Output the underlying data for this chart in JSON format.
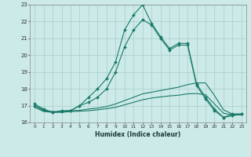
{
  "title": "",
  "xlabel": "Humidex (Indice chaleur)",
  "background_color": "#cceae7",
  "grid_color": "#aacccc",
  "line_color": "#1a7a6a",
  "xmin": -0.5,
  "xmax": 23.5,
  "ymin": 16,
  "ymax": 23,
  "yticks": [
    16,
    17,
    18,
    19,
    20,
    21,
    22,
    23
  ],
  "xticks": [
    0,
    1,
    2,
    3,
    4,
    5,
    6,
    7,
    8,
    9,
    10,
    11,
    12,
    13,
    14,
    15,
    16,
    17,
    18,
    19,
    20,
    21,
    22,
    23
  ],
  "line1_x": [
    0,
    1,
    2,
    3,
    4,
    5,
    6,
    7,
    8,
    9,
    10,
    11,
    12,
    13,
    14,
    15,
    16,
    17,
    18,
    19,
    20,
    21,
    22,
    23
  ],
  "line1_y": [
    17.1,
    16.8,
    16.6,
    16.7,
    16.7,
    17.0,
    17.5,
    18.0,
    18.6,
    19.6,
    21.5,
    22.4,
    23.0,
    21.9,
    21.1,
    20.4,
    20.7,
    20.7,
    18.3,
    17.5,
    16.8,
    16.3,
    16.5,
    16.5
  ],
  "line2_x": [
    0,
    1,
    2,
    3,
    4,
    5,
    6,
    7,
    8,
    9,
    10,
    11,
    12,
    13,
    14,
    15,
    16,
    17,
    18,
    19,
    20,
    21,
    22,
    23
  ],
  "line2_y": [
    17.0,
    16.75,
    16.6,
    16.65,
    16.7,
    17.0,
    17.2,
    17.5,
    18.0,
    19.0,
    20.5,
    21.5,
    22.1,
    21.8,
    21.0,
    20.3,
    20.6,
    20.6,
    18.2,
    17.4,
    16.7,
    16.3,
    16.4,
    16.5
  ],
  "line3_x": [
    0,
    1,
    2,
    3,
    4,
    5,
    6,
    7,
    8,
    9,
    10,
    11,
    12,
    13,
    14,
    15,
    16,
    17,
    18,
    19,
    20,
    21,
    22,
    23
  ],
  "line3_y": [
    17.0,
    16.7,
    16.65,
    16.65,
    16.7,
    16.72,
    16.8,
    16.85,
    16.95,
    17.1,
    17.3,
    17.5,
    17.7,
    17.8,
    17.9,
    18.0,
    18.1,
    18.25,
    18.35,
    18.35,
    17.6,
    16.75,
    16.5,
    16.5
  ],
  "line4_x": [
    0,
    1,
    2,
    3,
    4,
    5,
    6,
    7,
    8,
    9,
    10,
    11,
    12,
    13,
    14,
    15,
    16,
    17,
    18,
    19,
    20,
    21,
    22,
    23
  ],
  "line4_y": [
    16.9,
    16.65,
    16.6,
    16.6,
    16.65,
    16.67,
    16.7,
    16.75,
    16.82,
    16.9,
    17.05,
    17.2,
    17.35,
    17.45,
    17.52,
    17.58,
    17.62,
    17.7,
    17.72,
    17.65,
    17.1,
    16.55,
    16.45,
    16.45
  ]
}
